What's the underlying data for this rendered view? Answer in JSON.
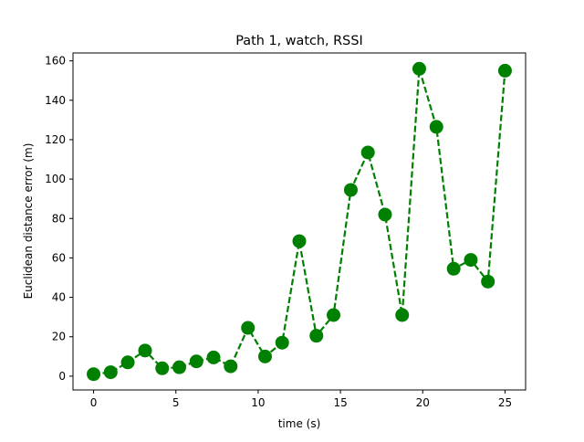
{
  "chart_data": {
    "type": "line",
    "title": "Path 1, watch, RSSI",
    "xlabel": "time (s)",
    "ylabel": "Euclidean distance error (m)",
    "xlim": [
      -1.25,
      26.25
    ],
    "ylim": [
      -7,
      164
    ],
    "xticks": [
      0,
      5,
      10,
      15,
      20,
      25
    ],
    "yticks": [
      0,
      20,
      40,
      60,
      80,
      100,
      120,
      140,
      160
    ],
    "grid": false,
    "series": [
      {
        "color": "#008000",
        "line_style": "dashed",
        "marker": "circle",
        "x": [
          0.0,
          1.04,
          2.08,
          3.13,
          4.17,
          5.21,
          6.25,
          7.29,
          8.33,
          9.38,
          10.42,
          11.46,
          12.5,
          13.54,
          14.58,
          15.63,
          16.67,
          17.71,
          18.75,
          19.79,
          20.83,
          21.88,
          22.92,
          23.96,
          25.0
        ],
        "y": [
          1,
          2,
          7,
          13,
          4,
          4.5,
          7.5,
          9.5,
          5,
          24.5,
          10,
          17,
          68.5,
          20.5,
          31,
          94.5,
          113.5,
          82,
          31,
          156,
          126.5,
          54.5,
          59,
          48,
          155
        ]
      }
    ]
  }
}
